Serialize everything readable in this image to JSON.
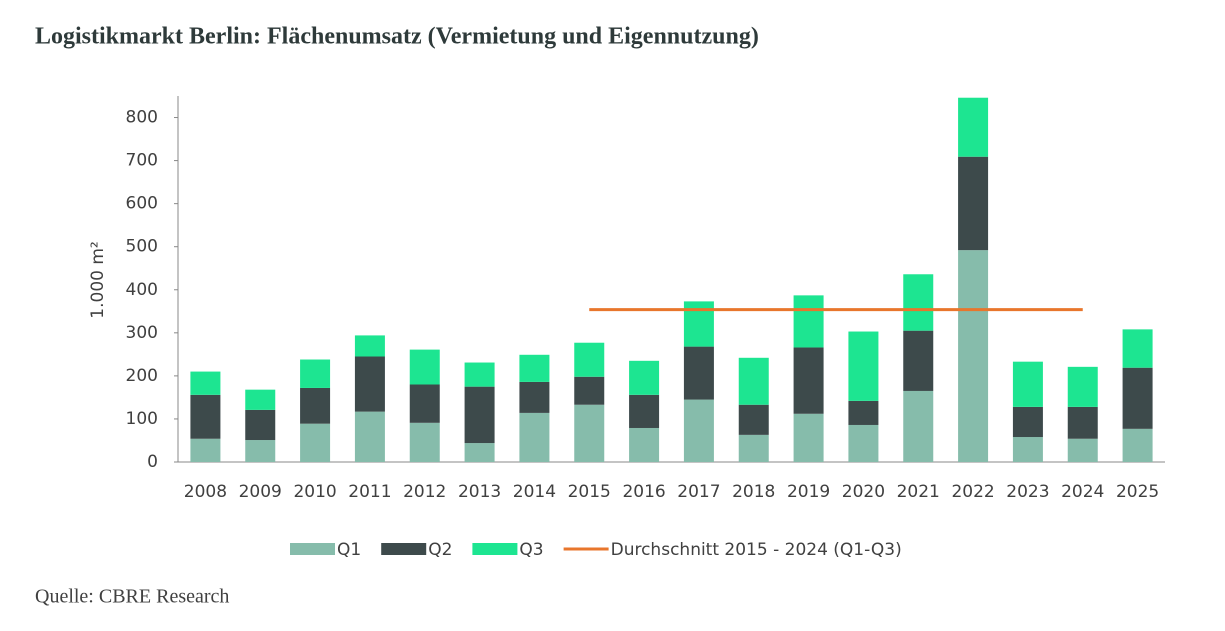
{
  "chart_data": {
    "type": "bar",
    "stacked": true,
    "title": "Logistikmarkt Berlin: Flächenumsatz (Vermietung und Eigennutzung)",
    "ylabel": "1.000 m²",
    "source": "Quelle: CBRE Research",
    "categories": [
      "2008",
      "2009",
      "2010",
      "2011",
      "2012",
      "2013",
      "2014",
      "2015",
      "2016",
      "2017",
      "2018",
      "2019",
      "2020",
      "2021",
      "2022",
      "2023",
      "2024",
      "2025"
    ],
    "series": [
      {
        "name": "Q1",
        "color": "#86bcab",
        "values": [
          54,
          51,
          89,
          117,
          91,
          44,
          114,
          133,
          79,
          145,
          63,
          112,
          86,
          165,
          492,
          58,
          54,
          77
        ]
      },
      {
        "name": "Q2",
        "color": "#3d4a4b",
        "values": [
          102,
          70,
          83,
          128,
          89,
          131,
          72,
          65,
          77,
          123,
          70,
          154,
          56,
          140,
          217,
          70,
          74,
          142
        ]
      },
      {
        "name": "Q3",
        "color": "#1de591",
        "values": [
          54,
          47,
          66,
          49,
          81,
          56,
          63,
          79,
          79,
          105,
          109,
          121,
          161,
          131,
          137,
          105,
          93,
          89
        ]
      },
      {
        "name": "Durchschnitt 2015 - 2024 (Q1-Q3)",
        "type": "line",
        "color": "#e8762c",
        "values": [
          null,
          null,
          null,
          null,
          null,
          null,
          null,
          354,
          354,
          354,
          354,
          354,
          354,
          354,
          354,
          354,
          354,
          null
        ]
      }
    ],
    "ylim": [
      0,
      850
    ],
    "yticks": [
      0,
      100,
      200,
      300,
      400,
      500,
      600,
      700,
      800
    ],
    "grid": false
  }
}
